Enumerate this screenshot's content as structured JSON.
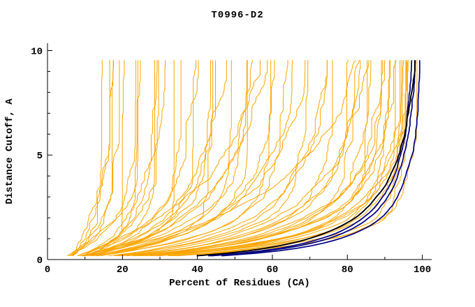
{
  "chart_data": {
    "type": "line",
    "title": "T0996-D2",
    "xlabel": "Percent of Residues (CA)",
    "ylabel": "Distance Cutoff, A",
    "xlim": [
      0,
      102.5
    ],
    "ylim": [
      0,
      10.35
    ],
    "x_major_ticks": [
      0,
      20,
      40,
      60,
      80,
      100
    ],
    "x_minor_step": 10,
    "y_major_ticks": [
      0,
      5,
      10
    ],
    "y_minor_step": 1,
    "grid": false,
    "legend": "none",
    "curve_encoding": "each curve = [percent_at_saturation, tau, shape]; x(y) = x0 + (F - x0) * (1 - exp(-(y/tau)^shape)), cutoff y drawn 0.18..9.56 A",
    "colors": {
      "predicted_models": "#FFA500",
      "best_models": "#000080",
      "reference": "#000000",
      "axis": "#000000",
      "background": "#FFFFFF"
    },
    "series_groups": [
      {
        "name": "model-curve",
        "color": "#FFA500",
        "width": 1,
        "jitter": 1.1,
        "curves": [
          [
            13,
            1.2,
            1.0
          ],
          [
            15,
            0.8,
            1.1
          ],
          [
            16,
            1.5,
            0.9
          ],
          [
            18,
            1.0,
            1.2
          ],
          [
            19,
            2.0,
            0.8
          ],
          [
            21,
            0.7,
            1.0
          ],
          [
            22,
            1.4,
            1.1
          ],
          [
            24,
            1.1,
            0.9
          ],
          [
            25,
            1.8,
            1.0
          ],
          [
            27,
            0.9,
            1.2
          ],
          [
            28,
            1.6,
            0.8
          ],
          [
            30,
            1.2,
            1.0
          ],
          [
            31,
            2.2,
            0.9
          ],
          [
            33,
            0.8,
            1.1
          ],
          [
            36,
            1.5,
            0.9
          ],
          [
            38,
            1.0,
            1.0
          ],
          [
            40,
            2.0,
            0.8
          ],
          [
            42,
            1.3,
            1.0
          ],
          [
            44,
            0.9,
            1.1
          ],
          [
            46,
            1.7,
            0.9
          ],
          [
            48,
            1.2,
            1.0
          ],
          [
            50,
            2.4,
            0.8
          ],
          [
            52,
            1.0,
            1.0
          ],
          [
            54,
            1.5,
            0.9
          ],
          [
            56,
            2.0,
            0.9
          ],
          [
            58,
            1.1,
            1.0
          ],
          [
            60,
            1.6,
            0.85
          ],
          [
            60,
            3.5,
            1.0
          ],
          [
            62,
            2.6,
            0.8
          ],
          [
            64,
            1.3,
            0.95
          ],
          [
            66,
            1.9,
            0.9
          ],
          [
            68,
            1.0,
            1.0
          ],
          [
            70,
            2.2,
            0.85
          ],
          [
            74,
            1.4,
            0.8
          ],
          [
            76,
            1.0,
            0.85
          ],
          [
            78,
            1.8,
            0.75
          ],
          [
            80,
            1.2,
            0.8
          ],
          [
            82,
            0.9,
            0.85
          ],
          [
            83,
            1.5,
            0.75
          ],
          [
            85,
            1.1,
            0.8
          ],
          [
            86,
            0.8,
            0.85
          ],
          [
            87,
            1.6,
            0.7
          ],
          [
            88,
            1.0,
            0.8
          ],
          [
            88,
            3.0,
            0.9
          ],
          [
            89,
            1.3,
            0.75
          ],
          [
            90,
            0.7,
            0.85
          ],
          [
            91,
            1.1,
            0.75
          ],
          [
            92,
            0.9,
            0.8
          ],
          [
            92,
            1.4,
            0.7
          ],
          [
            93,
            0.8,
            0.8
          ],
          [
            94,
            1.0,
            0.75
          ],
          [
            94,
            0.6,
            0.85
          ],
          [
            95,
            0.9,
            0.75
          ],
          [
            95,
            1.2,
            0.7
          ],
          [
            96,
            0.7,
            0.8
          ],
          [
            96,
            1.0,
            0.72
          ],
          [
            97,
            0.8,
            0.75
          ],
          [
            97,
            0.6,
            0.8
          ]
        ]
      },
      {
        "name": "best-model-curve",
        "color": "#000080",
        "width": 1.7,
        "jitter": 0.25,
        "curves": [
          [
            99.7,
            0.5,
            0.56
          ],
          [
            99.0,
            0.56,
            0.55
          ],
          [
            98.6,
            0.62,
            0.54
          ]
        ]
      },
      {
        "name": "reference-curve",
        "color": "#000000",
        "width": 1.9,
        "jitter": 0.2,
        "curves": [
          [
            99.3,
            0.78,
            0.55
          ]
        ]
      }
    ]
  }
}
